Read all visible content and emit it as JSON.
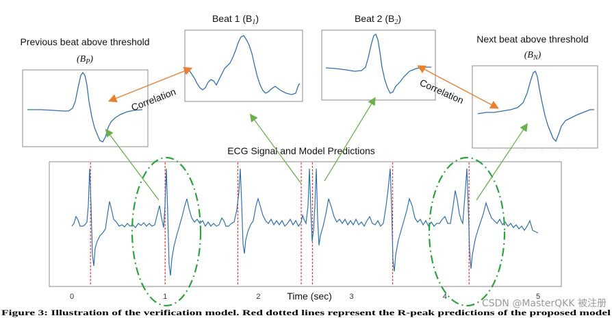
{
  "colors": {
    "signal": "#2f6fae",
    "marker": "#e23a3a",
    "highlight": "#2aa33a",
    "arrow_green": "#6ab04c",
    "arrow_orange": "#e8802f",
    "frame": "#8a8a8a"
  },
  "labels": {
    "prev_beat": "Previous beat above threshold",
    "prev_beat_sym": "(B",
    "prev_beat_sub": "P",
    "beat1": "Beat 1 (B",
    "beat1_sub": "1",
    "beat2": "Beat 2 (B",
    "beat2_sub": "2",
    "next_beat": "Next beat above threshold",
    "next_beat_sym": "(B",
    "next_beat_sub": "N",
    "correlation": "Correlation",
    "ecg_title": "ECG Signal and Model Predictions",
    "time_axis": "Time (sec)",
    "watermark": "CSDN @MasterQKK 被注册",
    "caption": "Figure 3: Illustration of the verification model. Red dotted lines represent the R-peak predictions of the proposed model"
  },
  "chart_data": {
    "type": "line",
    "x_ticks": [
      "0",
      "1",
      "2",
      "3",
      "4",
      "5"
    ],
    "xlabel": "Time (sec)",
    "xlim": [
      0,
      5
    ],
    "r_peak_predictions_sec": [
      0.2,
      1.0,
      1.78,
      2.46,
      2.58,
      3.44,
      4.26
    ]
  }
}
